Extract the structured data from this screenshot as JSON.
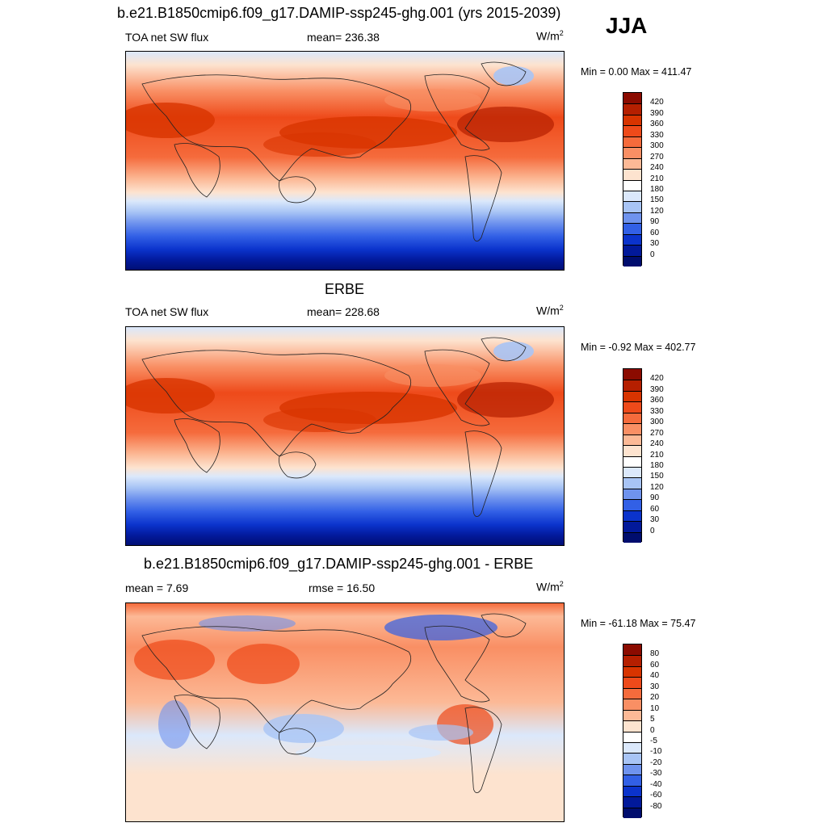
{
  "header": {
    "case_title": "b.e21.B1850cmip6.f09_g17.DAMIP-ssp245-ghg.001 (yrs 2015-2039)",
    "season": "JJA"
  },
  "panels": [
    {
      "id": "model",
      "title": "",
      "left_label": "TOA net SW flux",
      "center_label": "mean= 236.38",
      "units": "W/m",
      "units_sup": "2",
      "minmax": "Min =   0.00 Max = 411.47",
      "colorbar": {
        "labels": [
          "420",
          "390",
          "360",
          "330",
          "300",
          "270",
          "240",
          "210",
          "180",
          "150",
          "120",
          "90",
          "60",
          "30",
          "0"
        ],
        "colors": [
          "#8b0b00",
          "#b51f00",
          "#d83400",
          "#ee4a1a",
          "#f56b3c",
          "#f98f64",
          "#fcb996",
          "#fde3cf",
          "#ffffff",
          "#dbe8fb",
          "#a8c4f5",
          "#6f93ee",
          "#3260e6",
          "#0b33cc",
          "#02199a",
          "#000d6e"
        ]
      }
    },
    {
      "id": "obs",
      "title": "ERBE",
      "left_label": "TOA net SW flux",
      "center_label": "mean= 228.68",
      "units": "W/m",
      "units_sup": "2",
      "minmax": "Min =  -0.92 Max = 402.77",
      "colorbar": {
        "labels": [
          "420",
          "390",
          "360",
          "330",
          "300",
          "270",
          "240",
          "210",
          "180",
          "150",
          "120",
          "90",
          "60",
          "30",
          "0"
        ],
        "colors": [
          "#8b0b00",
          "#b51f00",
          "#d83400",
          "#ee4a1a",
          "#f56b3c",
          "#f98f64",
          "#fcb996",
          "#fde3cf",
          "#ffffff",
          "#dbe8fb",
          "#a8c4f5",
          "#6f93ee",
          "#3260e6",
          "#0b33cc",
          "#02199a",
          "#000d6e"
        ]
      }
    },
    {
      "id": "diff",
      "title": "b.e21.B1850cmip6.f09_g17.DAMIP-ssp245-ghg.001 - ERBE",
      "left_label": "mean =   7.69",
      "center_label": "rmse =  16.50",
      "units": "W/m",
      "units_sup": "2",
      "minmax": "Min = -61.18 Max =  75.47",
      "colorbar": {
        "labels": [
          "80",
          "60",
          "40",
          "30",
          "20",
          "10",
          "5",
          "0",
          "-5",
          "-10",
          "-20",
          "-30",
          "-40",
          "-60",
          "-80"
        ],
        "colors": [
          "#8b0b00",
          "#b51f00",
          "#d83400",
          "#ee4a1a",
          "#f56b3c",
          "#f98f64",
          "#fcb996",
          "#fde3cf",
          "#ffffff",
          "#dbe8fb",
          "#a8c4f5",
          "#6f93ee",
          "#3260e6",
          "#0b33cc",
          "#02199a",
          "#000d6e"
        ]
      }
    }
  ]
}
